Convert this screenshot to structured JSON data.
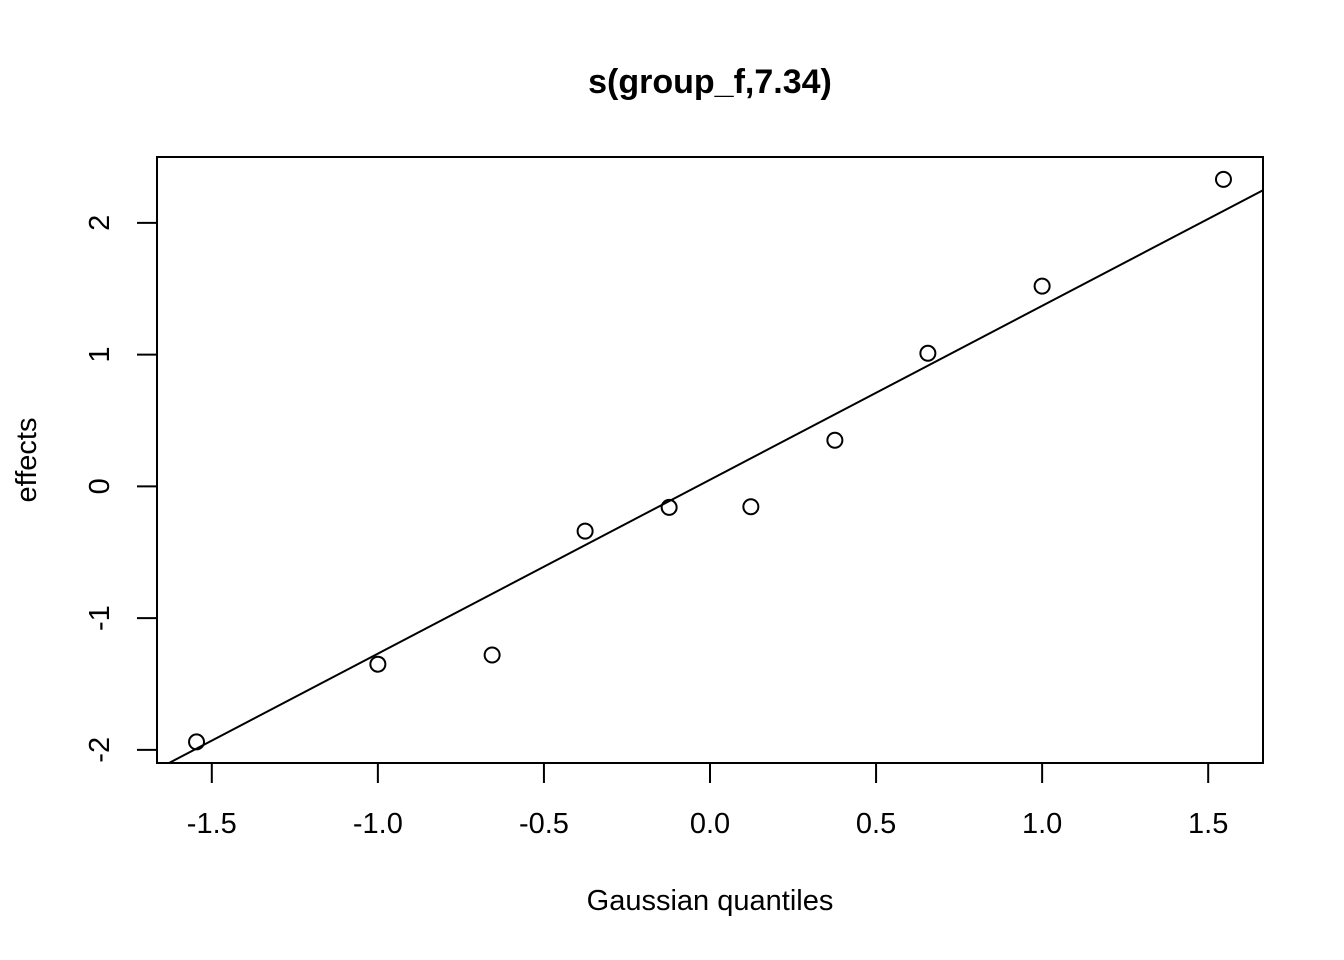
{
  "chart_data": {
    "type": "scatter",
    "title": "s(group_f,7.34)",
    "xlabel": "Gaussian quantiles",
    "ylabel": "effects",
    "xlim": [
      -1.665,
      1.665
    ],
    "ylim": [
      -2.1,
      2.5
    ],
    "x_ticks": [
      -1.5,
      -1.0,
      -0.5,
      0.0,
      0.5,
      1.0,
      1.5
    ],
    "x_tick_labels": [
      "-1.5",
      "-1.0",
      "-0.5",
      "0.0",
      "0.5",
      "1.0",
      "1.5"
    ],
    "y_ticks": [
      -2,
      -1,
      0,
      1,
      2
    ],
    "y_tick_labels": [
      "-2",
      "-1",
      "0",
      "1",
      "2"
    ],
    "grid": false,
    "points": [
      {
        "x": -1.546,
        "y": -1.94
      },
      {
        "x": -1.0,
        "y": -1.35
      },
      {
        "x": -0.656,
        "y": -1.28
      },
      {
        "x": -0.376,
        "y": -0.34
      },
      {
        "x": -0.123,
        "y": -0.16
      },
      {
        "x": 0.123,
        "y": -0.155
      },
      {
        "x": 0.376,
        "y": 0.35
      },
      {
        "x": 0.656,
        "y": 1.01
      },
      {
        "x": 1.0,
        "y": 1.52
      },
      {
        "x": 1.546,
        "y": 2.33
      }
    ],
    "reference_line": {
      "intercept": 0.05,
      "slope": 1.32
    }
  }
}
